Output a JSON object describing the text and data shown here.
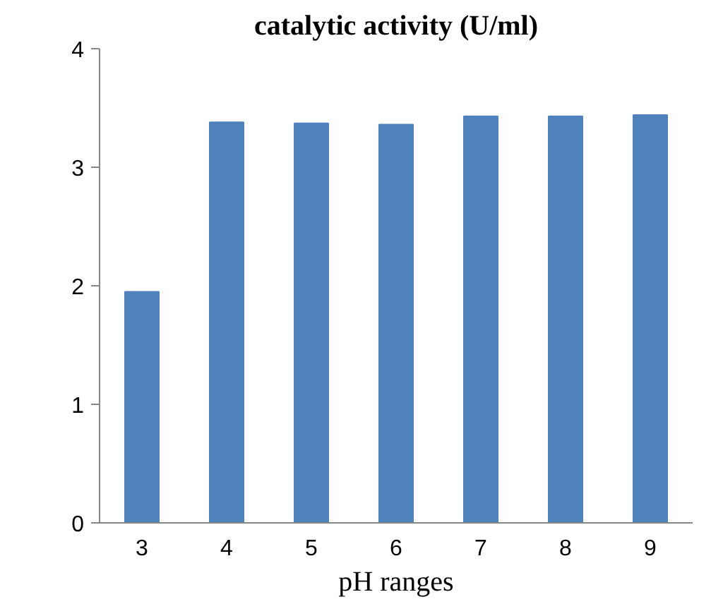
{
  "chart_data": {
    "type": "bar",
    "title": "catalytic activity (U/ml)",
    "xlabel": "pH ranges",
    "categories": [
      "3",
      "4",
      "5",
      "6",
      "7",
      "8",
      "9"
    ],
    "values": [
      1.95,
      3.38,
      3.37,
      3.36,
      3.43,
      3.43,
      3.44
    ],
    "color": "#4f81bd",
    "ylim": [
      0,
      4
    ],
    "yticks": [
      0,
      1,
      2,
      3,
      4
    ]
  }
}
